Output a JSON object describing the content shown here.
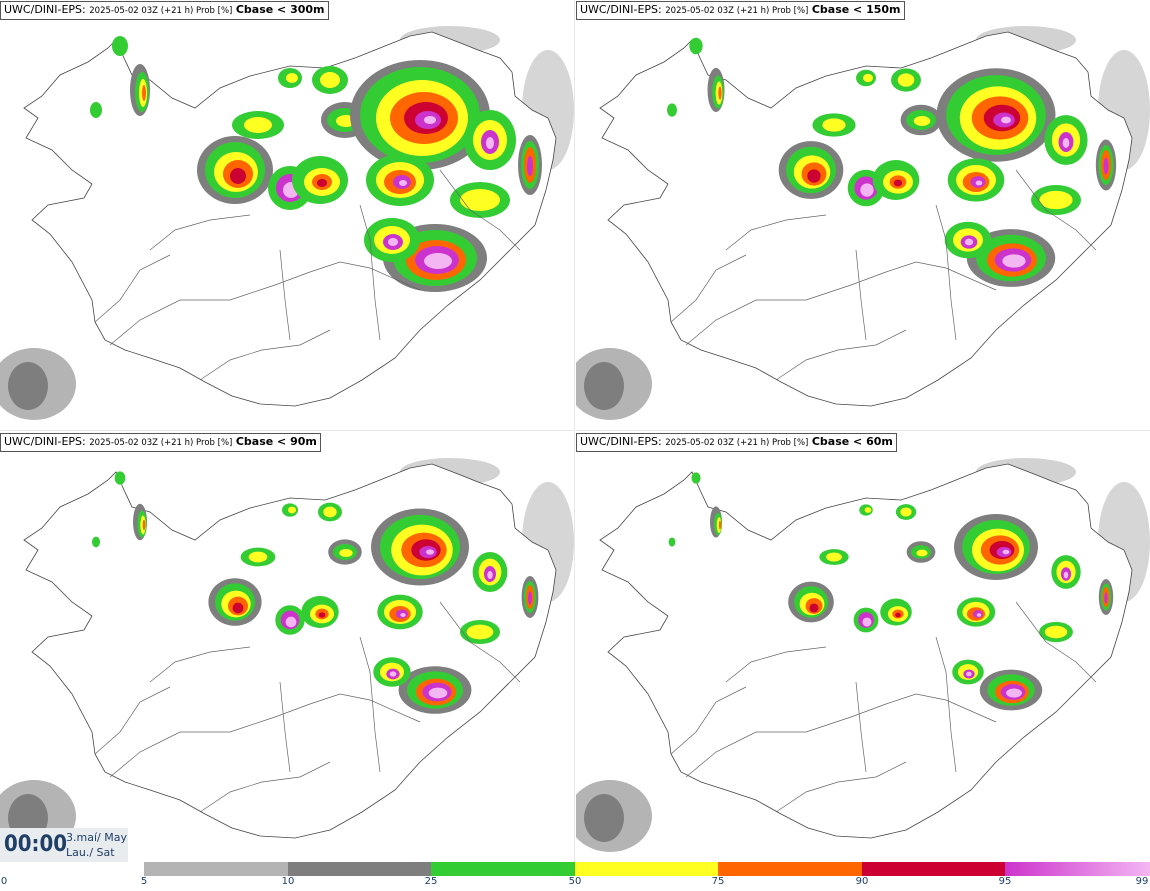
{
  "panels": [
    {
      "model": "UWC/DINI-EPS",
      "meta": "2025-05-02 03Z (+21 h) Prob [%]",
      "variable": "Cbase < 300m",
      "intensity": 1.0
    },
    {
      "model": "UWC/DINI-EPS",
      "meta": "2025-05-02 03Z (+21 h) Prob [%]",
      "variable": "Cbase < 150m",
      "intensity": 0.85
    },
    {
      "model": "UWC/DINI-EPS",
      "meta": "2025-05-02 03Z (+21 h) Prob [%]",
      "variable": "Cbase < 90m",
      "intensity": 0.7
    },
    {
      "model": "UWC/DINI-EPS",
      "meta": "2025-05-02 03Z (+21 h) Prob [%]",
      "variable": "Cbase < 60m",
      "intensity": 0.6
    }
  ],
  "time": {
    "clock": "00:00",
    "date_line1": "3.maí/ May",
    "date_line2": "Lau./ Sat"
  },
  "legend": {
    "labels": [
      "0",
      "5",
      "10",
      "25",
      "50",
      "75",
      "90",
      "95",
      "99"
    ],
    "bins": [
      {
        "from": 5,
        "to": 10,
        "color": "#b4b4b4"
      },
      {
        "from": 10,
        "to": 25,
        "color": "#7e7e7e"
      },
      {
        "from": 25,
        "to": 50,
        "color": "#33cc33"
      },
      {
        "from": 50,
        "to": 75,
        "color": "#ffff22"
      },
      {
        "from": 75,
        "to": 90,
        "color": "#ff6600"
      },
      {
        "from": 90,
        "to": 95,
        "color": "#cc0033"
      },
      {
        "from": 95,
        "to": 99,
        "color": "#cc33cc"
      }
    ]
  },
  "colors": {
    "light_gray": "#b4b4b4",
    "dark_gray": "#7e7e7e",
    "green": "#33cc33",
    "yellow": "#ffff22",
    "orange": "#ff6600",
    "red": "#cc0033",
    "magenta": "#cc33cc",
    "pink": "#f3b6f3"
  }
}
